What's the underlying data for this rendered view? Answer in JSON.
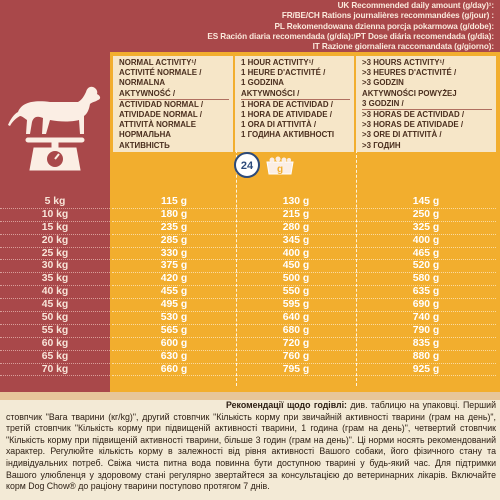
{
  "header": {
    "lines": [
      "UK Recommended daily amount (g/day)¹:",
      "FR/BE/CH Rations journalières recommandées (g/jour) :",
      "PL Rekomendowana dzienna porcja pokarmowa (g/dobe):",
      "ES Ración diaria recomendada (g/día):/PT Dose diária recomendada (g/dia):",
      "IT Razione giornaliera raccomandata (g/giorno):"
    ]
  },
  "activity_headers": [
    {
      "lines": [
        "NORMAL ACTIVITY¹/",
        "ACTIVITÉ NORMALE /",
        "NORMALNA",
        "AKTYWNOŚĆ /"
      ],
      "lines2": [
        "ACTIVIDAD NORMAL /",
        "ATIVIDADE NORMAL /",
        "ATTIVITÀ NORMALE",
        "НОРМАЛЬНА",
        "АКТИВНІСТЬ"
      ]
    },
    {
      "lines": [
        "1 HOUR ACTIVITY¹/",
        "1 HEURE D'ACTIVITÉ /",
        "1 GODZINA",
        "AKTYWNOŚCI /"
      ],
      "lines2": [
        "1 HORA DE ACTIVIDAD /",
        "1 HORA DE ATIVIDADE /",
        "1 ORA DI ATTIVITÀ /",
        "1 ГОДИНА АКТИВНОСТІ"
      ]
    },
    {
      "lines": [
        ">3 HOURS ACTIVITY¹/",
        ">3 HEURES D'ACTIVITÉ /",
        ">3 GODZIN",
        "AKTYWNOŚCI POWYŻEJ",
        "3 GODZIN /"
      ],
      "lines2": [
        ">3 HORAS DE ACTIVIDAD /",
        ">3 HORAS DE ATIVIDADE /",
        ">3 ORE DI ATTIVITÀ /",
        ">3 ГОДИН",
        "АКТИВНОСТІ"
      ]
    }
  ],
  "icons": {
    "clock_label": "24",
    "unit_label": "g"
  },
  "table": {
    "weights": [
      "5 kg",
      "10 kg",
      "15 kg",
      "20 kg",
      "25 kg",
      "30 kg",
      "35 kg",
      "40 kg",
      "45 kg",
      "50 kg",
      "55 kg",
      "60 kg",
      "65 kg",
      "70 kg"
    ],
    "normal": [
      "115 g",
      "180 g",
      "235 g",
      "285 g",
      "330 g",
      "375 g",
      "420 g",
      "455 g",
      "495 g",
      "530 g",
      "565 g",
      "600 g",
      "630 g",
      "660 g"
    ],
    "one_hour": [
      "130 g",
      "215 g",
      "280 g",
      "345 g",
      "400 g",
      "450 g",
      "500 g",
      "550 g",
      "595 g",
      "640 g",
      "680 g",
      "720 g",
      "760 g",
      "795 g"
    ],
    "three_hours": [
      "145 g",
      "250 g",
      "325 g",
      "400 g",
      "465 g",
      "520 g",
      "580 g",
      "635 g",
      "690 g",
      "740 g",
      "790 g",
      "835 g",
      "880 g",
      "925 g"
    ]
  },
  "note": {
    "lead": "Рекомендації щодо годівлі:",
    "text": "див. таблицю на упаковці. Перший стовпчик \"Вага тварини (кг/kg)\", другий стовпчик \"Кількість корму при звичайній активності тварини (грам на день)\", третій стовпчик \"Кількість корму при підвищеній активності тварини, 1 година (грам на день)\", четвертий стовпчик \"Кількість корму при підвищеній активності тварини, більше 3 годин (грам на день)\". Ці норми носять рекомендований характер. Регулюйте кількість корму в залежності від рівня активності Вашого собаки, його фізичного стану та індивідуальних потреб. Свіжа чиста питна вода повинна бути доступною тварині у будь-який час. Для підтримки Вашого улюбленця у здоровому стані регулярно звертайтеся за консультацією до ветеринарних лікарів. Включайте корм Dog Chow® до раціону тварини поступово протягом 7 днів."
  }
}
